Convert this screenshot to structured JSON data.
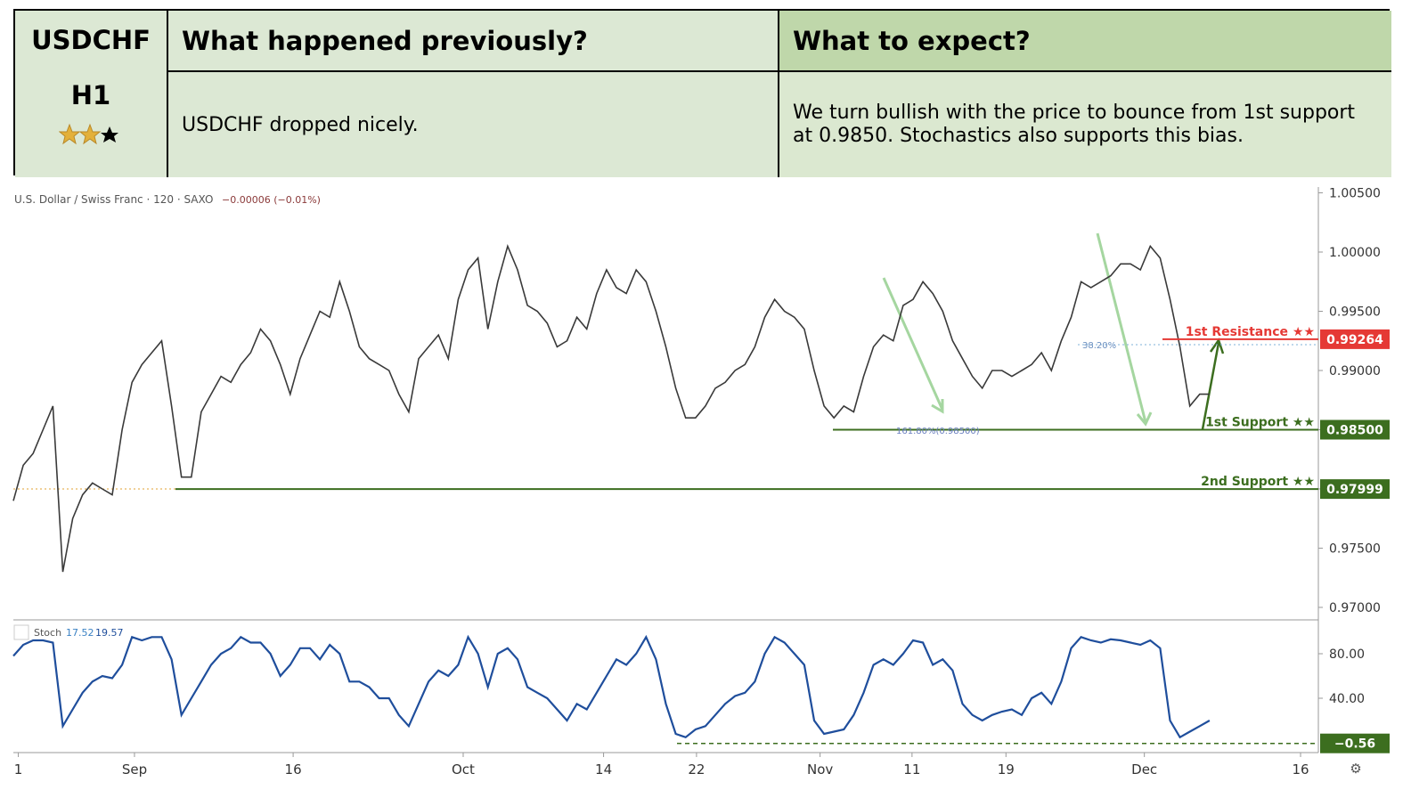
{
  "header": {
    "symbol": "USDCHF",
    "timeframe": "H1",
    "previous_title": "What happened previously?",
    "expect_title": "What to expect?",
    "previous_text": "USDCHF dropped nicely.",
    "expect_text": "We turn bullish with the price to bounce from 1st support at 0.9850. Stochastics also supports this bias."
  },
  "chart_data": [
    {
      "type": "line",
      "title": "U.S. Dollar / Swiss Franc · 120 · SAXO",
      "subtitle": "−0.00006 (−0.01%)",
      "color": "#3a3a3a",
      "values": [
        0.979,
        0.982,
        0.983,
        0.985,
        0.987,
        0.973,
        0.9775,
        0.9795,
        0.9805,
        0.98,
        0.9795,
        0.985,
        0.989,
        0.9905,
        0.9915,
        0.9925,
        0.987,
        0.981,
        0.981,
        0.9865,
        0.988,
        0.9895,
        0.989,
        0.9905,
        0.9915,
        0.9935,
        0.9925,
        0.9905,
        0.988,
        0.991,
        0.993,
        0.995,
        0.9945,
        0.9975,
        0.995,
        0.992,
        0.991,
        0.9905,
        0.99,
        0.988,
        0.9865,
        0.991,
        0.992,
        0.993,
        0.991,
        0.996,
        0.9985,
        0.9995,
        0.9935,
        0.9975,
        1.0005,
        0.9985,
        0.9955,
        0.995,
        0.994,
        0.992,
        0.9925,
        0.9945,
        0.9935,
        0.9965,
        0.9985,
        0.997,
        0.9965,
        0.9985,
        0.9975,
        0.995,
        0.992,
        0.9885,
        0.986,
        0.986,
        0.987,
        0.9885,
        0.989,
        0.99,
        0.9905,
        0.992,
        0.9945,
        0.996,
        0.995,
        0.9945,
        0.9935,
        0.99,
        0.987,
        0.986,
        0.987,
        0.9865,
        0.9895,
        0.992,
        0.993,
        0.9925,
        0.9955,
        0.996,
        0.9975,
        0.9965,
        0.995,
        0.9925,
        0.991,
        0.9895,
        0.9885,
        0.99,
        0.99,
        0.9895,
        0.99,
        0.9905,
        0.9915,
        0.99,
        0.9925,
        0.9945,
        0.9975,
        0.997,
        0.9975,
        0.998,
        0.999,
        0.999,
        0.9985,
        1.0005,
        0.9995,
        0.996,
        0.992,
        0.987,
        0.988,
        0.988
      ],
      "xlim": [
        0,
        132
      ],
      "xticks": [
        {
          "value": 0.5,
          "label": "1"
        },
        {
          "value": 12.25,
          "label": "Sep"
        },
        {
          "value": 28.3,
          "label": "16"
        },
        {
          "value": 45.5,
          "label": "Oct"
        },
        {
          "value": 59.7,
          "label": "14"
        },
        {
          "value": 69.1,
          "label": "22"
        },
        {
          "value": 81.6,
          "label": "Nov"
        },
        {
          "value": 90.9,
          "label": "11"
        },
        {
          "value": 100.4,
          "label": "19"
        },
        {
          "value": 114.4,
          "label": "Dec"
        },
        {
          "value": 130.2,
          "label": "16"
        }
      ],
      "ylim": [
        0.96902,
        1.00549
      ],
      "yticks": [
        {
          "value": 0.97,
          "label": "0.97000"
        },
        {
          "value": 0.975,
          "label": "0.97500"
        },
        {
          "value": 0.98,
          "label": "0.98000"
        },
        {
          "value": 0.985,
          "label": "0.98500"
        },
        {
          "value": 0.99,
          "label": "0.99000"
        },
        {
          "value": 0.995,
          "label": "0.99500"
        },
        {
          "value": 1.0,
          "label": "1.00000"
        },
        {
          "value": 1.005,
          "label": "1.00500"
        }
      ],
      "levels": [
        {
          "name": "1st Resistance ★★",
          "value": 0.99264,
          "label": "0.99264",
          "color": "#e53935"
        },
        {
          "name": "1st Support ★★",
          "value": 0.985,
          "label": "0.98500",
          "color": "#3c6e1f"
        },
        {
          "name": "2nd Support ★★",
          "value": 0.97999,
          "label": "0.97999",
          "color": "#3c6e1f"
        }
      ],
      "annotations": [
        "38.20%",
        "161.80%(0.98500)"
      ]
    },
    {
      "type": "line",
      "title": "Stoch",
      "subtitle": "17.52",
      "subtitle2": "19.57",
      "color": "#1f4e9c",
      "values": [
        78,
        88,
        92,
        92,
        90,
        15,
        30,
        45,
        55,
        60,
        58,
        70,
        95,
        92,
        95,
        95,
        75,
        25,
        40,
        55,
        70,
        80,
        85,
        95,
        90,
        90,
        80,
        60,
        70,
        85,
        85,
        75,
        88,
        80,
        55,
        55,
        50,
        40,
        40,
        25,
        15,
        35,
        55,
        65,
        60,
        70,
        95,
        80,
        50,
        80,
        85,
        75,
        50,
        45,
        40,
        30,
        20,
        35,
        30,
        45,
        60,
        75,
        70,
        80,
        95,
        75,
        35,
        8,
        5,
        12,
        15,
        25,
        35,
        42,
        45,
        55,
        80,
        95,
        90,
        80,
        70,
        20,
        8,
        10,
        12,
        25,
        45,
        70,
        75,
        70,
        80,
        92,
        90,
        70,
        75,
        65,
        35,
        25,
        20,
        25,
        28,
        30,
        25,
        40,
        45,
        35,
        55,
        85,
        95,
        92,
        90,
        93,
        92,
        90,
        88,
        92,
        85,
        20,
        5,
        10,
        15,
        20
      ],
      "ylim": [
        -8.8,
        109.6
      ],
      "yticks": [
        {
          "value": 40,
          "label": "40.00"
        },
        {
          "value": 80,
          "label": "80.00"
        }
      ],
      "levels": [
        {
          "value": -0.56,
          "label": "−0.56",
          "color": "#3c6e1f"
        }
      ]
    }
  ]
}
